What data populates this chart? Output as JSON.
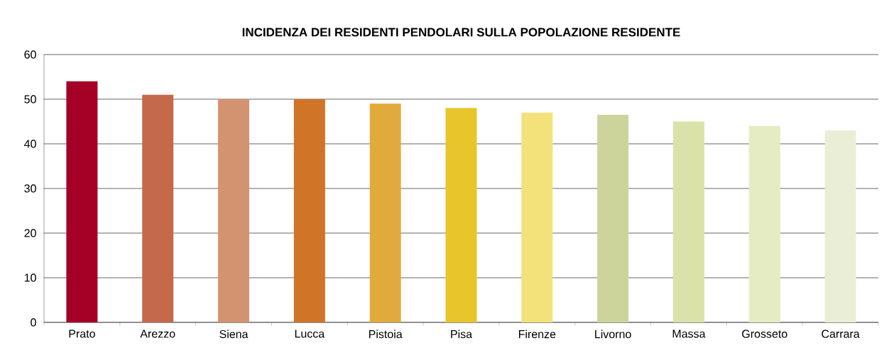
{
  "chart_data": {
    "type": "bar",
    "title": "INCIDENZA DEI RESIDENTI PENDOLARI SULLA POPOLAZIONE RESIDENTE",
    "categories": [
      "Prato",
      "Arezzo",
      "Siena",
      "Lucca",
      "Pistoia",
      "Pisa",
      "Firenze",
      "Livorno",
      "Massa",
      "Grosseto",
      "Carrara"
    ],
    "values": [
      54,
      51,
      50,
      50,
      49,
      48,
      47,
      46.5,
      45,
      44,
      43
    ],
    "colors": [
      "#a50026",
      "#c4694a",
      "#d49370",
      "#d07428",
      "#e0ab3c",
      "#e8c52a",
      "#f3e27a",
      "#ccd49c",
      "#dbe2a9",
      "#e5ebc2",
      "#ebeed6"
    ],
    "ylim": [
      0,
      60
    ],
    "yticks": [
      0,
      10,
      20,
      30,
      40,
      50,
      60
    ],
    "grid": "y"
  }
}
